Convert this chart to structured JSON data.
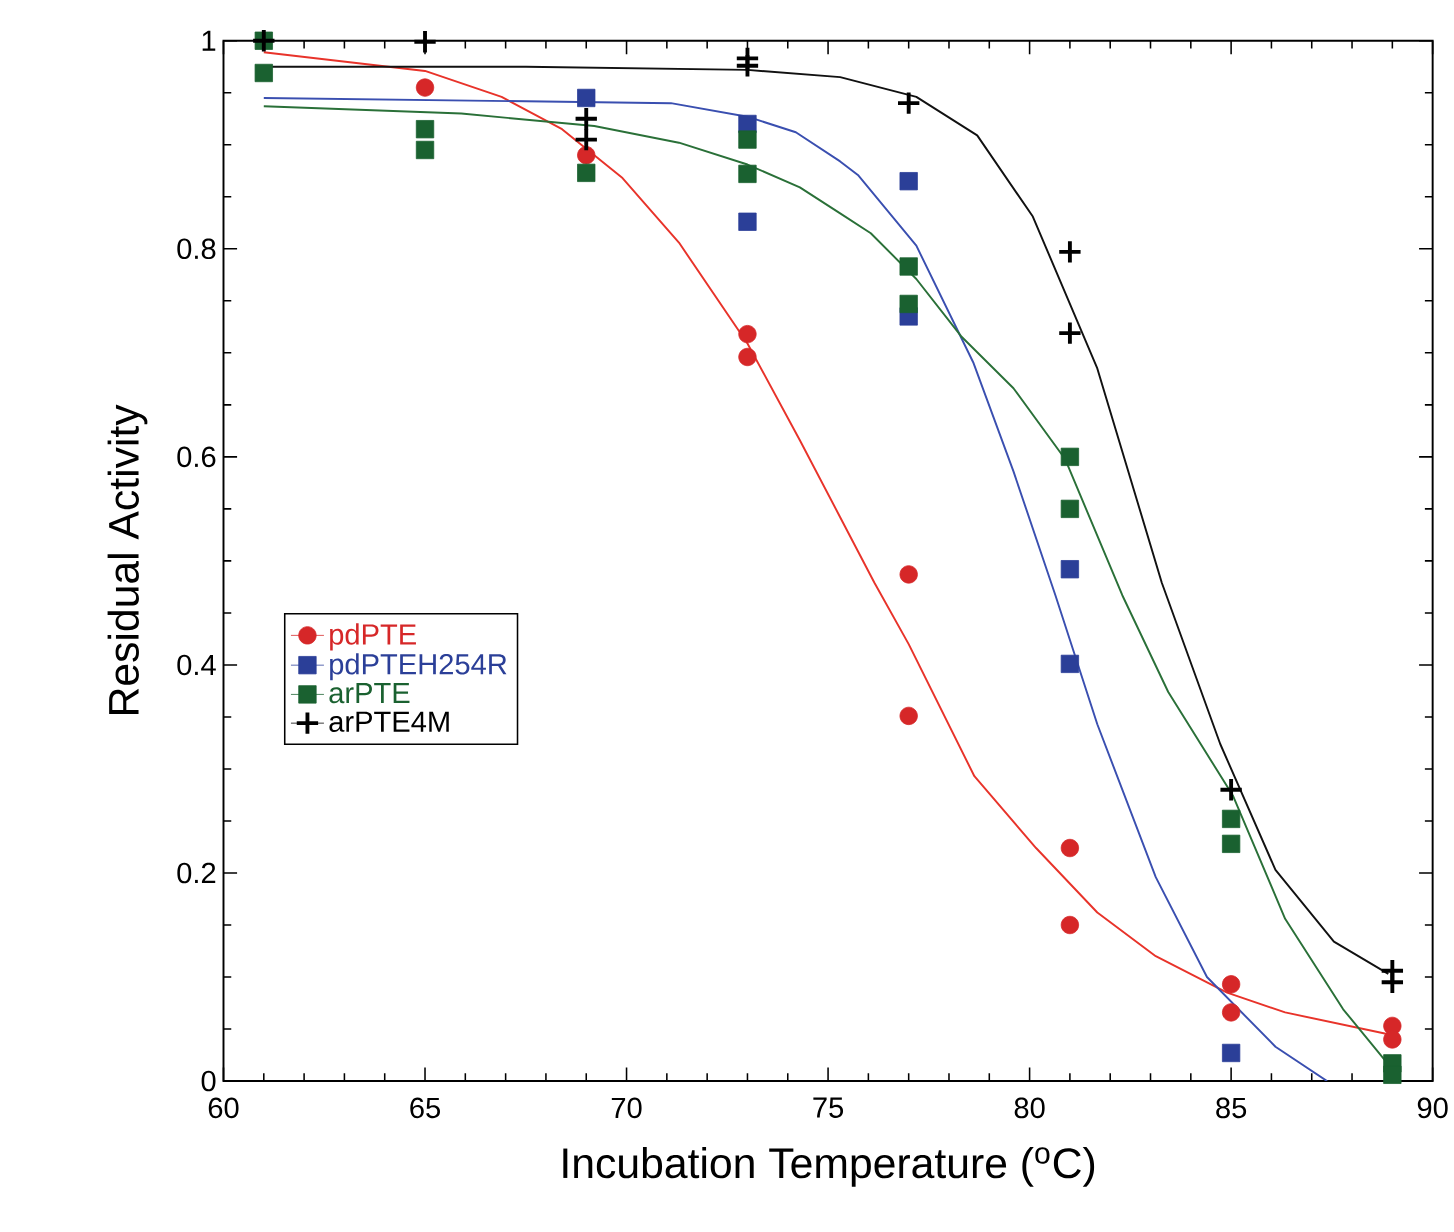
{
  "chart_data": {
    "type": "scatter",
    "xlabel": "Incubation Temperature ($^{o}$C)",
    "ylabel": "Residual Activity",
    "xlim": [
      60,
      90
    ],
    "ylim": [
      0,
      1
    ],
    "xticks": [
      60,
      65,
      70,
      75,
      80,
      85,
      90
    ],
    "yticks": [
      0,
      0.2,
      0.4,
      0.6,
      0.8,
      1
    ],
    "legend": "left",
    "grid": false,
    "series": [
      {
        "name": "pdPTE",
        "marker": "circle",
        "color": "#d62728",
        "x": [
          65,
          69,
          73,
          73,
          77,
          77,
          81,
          81,
          85,
          85,
          89,
          89
        ],
        "values": [
          0.955,
          0.89,
          0.718,
          0.696,
          0.487,
          0.351,
          0.224,
          0.15,
          0.093,
          0.066,
          0.053,
          0.04
        ]
      },
      {
        "name": "pdPTEH254R",
        "marker": "square",
        "color": "#2b3f98",
        "x": [
          69,
          73,
          73,
          77,
          77,
          81,
          81,
          85
        ],
        "values": [
          0.945,
          0.92,
          0.826,
          0.865,
          0.735,
          0.492,
          0.401,
          0.027
        ]
      },
      {
        "name": "arPTE",
        "marker": "square",
        "color": "#1a6130",
        "x": [
          61,
          61,
          65,
          65,
          69,
          73,
          73,
          77,
          77,
          81,
          81,
          85,
          85,
          89,
          89
        ],
        "values": [
          1.0,
          0.969,
          0.915,
          0.895,
          0.873,
          0.905,
          0.872,
          0.783,
          0.747,
          0.6,
          0.55,
          0.252,
          0.228,
          0.017,
          0.006
        ]
      },
      {
        "name": "arPTE4M",
        "marker": "cross",
        "color": "#000000",
        "x": [
          61,
          65,
          69,
          69,
          73,
          73,
          77,
          81,
          81,
          85,
          89,
          89
        ],
        "values": [
          1.0,
          0.999,
          0.925,
          0.905,
          0.983,
          0.976,
          0.94,
          0.797,
          0.719,
          0.28,
          0.106,
          0.095
        ]
      },
      {
        "type": "line",
        "marker": "none",
        "color": "#e8332a",
        "x": [
          61,
          65,
          66.9,
          68.4,
          69.9,
          71.3,
          73,
          74.3,
          75.3,
          76.15,
          77,
          78.63,
          80.16,
          81.68,
          83.13,
          84.9,
          86.34,
          88.9
        ],
        "values": [
          0.989,
          0.971,
          0.946,
          0.915,
          0.868,
          0.806,
          0.709,
          0.616,
          0.542,
          0.479,
          0.42,
          0.293,
          0.224,
          0.162,
          0.12,
          0.085,
          0.066,
          0.045
        ]
      },
      {
        "type": "line",
        "marker": "none",
        "color": "#3a4fb0",
        "x": [
          61,
          71.1,
          73,
          74.2,
          75.3,
          75.74,
          77.19,
          78.6,
          79.6,
          80.64,
          81.68,
          83.13,
          84.4,
          86.1,
          87.38
        ],
        "values": [
          0.945,
          0.94,
          0.927,
          0.912,
          0.884,
          0.871,
          0.803,
          0.691,
          0.586,
          0.467,
          0.343,
          0.196,
          0.1,
          0.033,
          0.0
        ]
      },
      {
        "type": "line",
        "marker": "none",
        "color": "#2a7038",
        "x": [
          61,
          65.9,
          69.2,
          71.3,
          73,
          74.3,
          75.3,
          76.06,
          77.19,
          78.3,
          79.6,
          80.88,
          82.3,
          83.44,
          85.05,
          86.34,
          87.78,
          88.9
        ],
        "values": [
          0.937,
          0.93,
          0.918,
          0.902,
          0.881,
          0.859,
          0.834,
          0.815,
          0.771,
          0.716,
          0.666,
          0.598,
          0.467,
          0.374,
          0.274,
          0.156,
          0.069,
          0.016
        ]
      },
      {
        "type": "line",
        "marker": "none",
        "color": "#111111",
        "x": [
          61,
          67.5,
          73,
          75.3,
          77.19,
          78.7,
          80.08,
          81.68,
          83.28,
          84.73,
          86.1,
          87.55,
          88.9
        ],
        "values": [
          0.975,
          0.975,
          0.972,
          0.965,
          0.946,
          0.909,
          0.831,
          0.685,
          0.479,
          0.324,
          0.203,
          0.134,
          0.103
        ]
      }
    ]
  }
}
